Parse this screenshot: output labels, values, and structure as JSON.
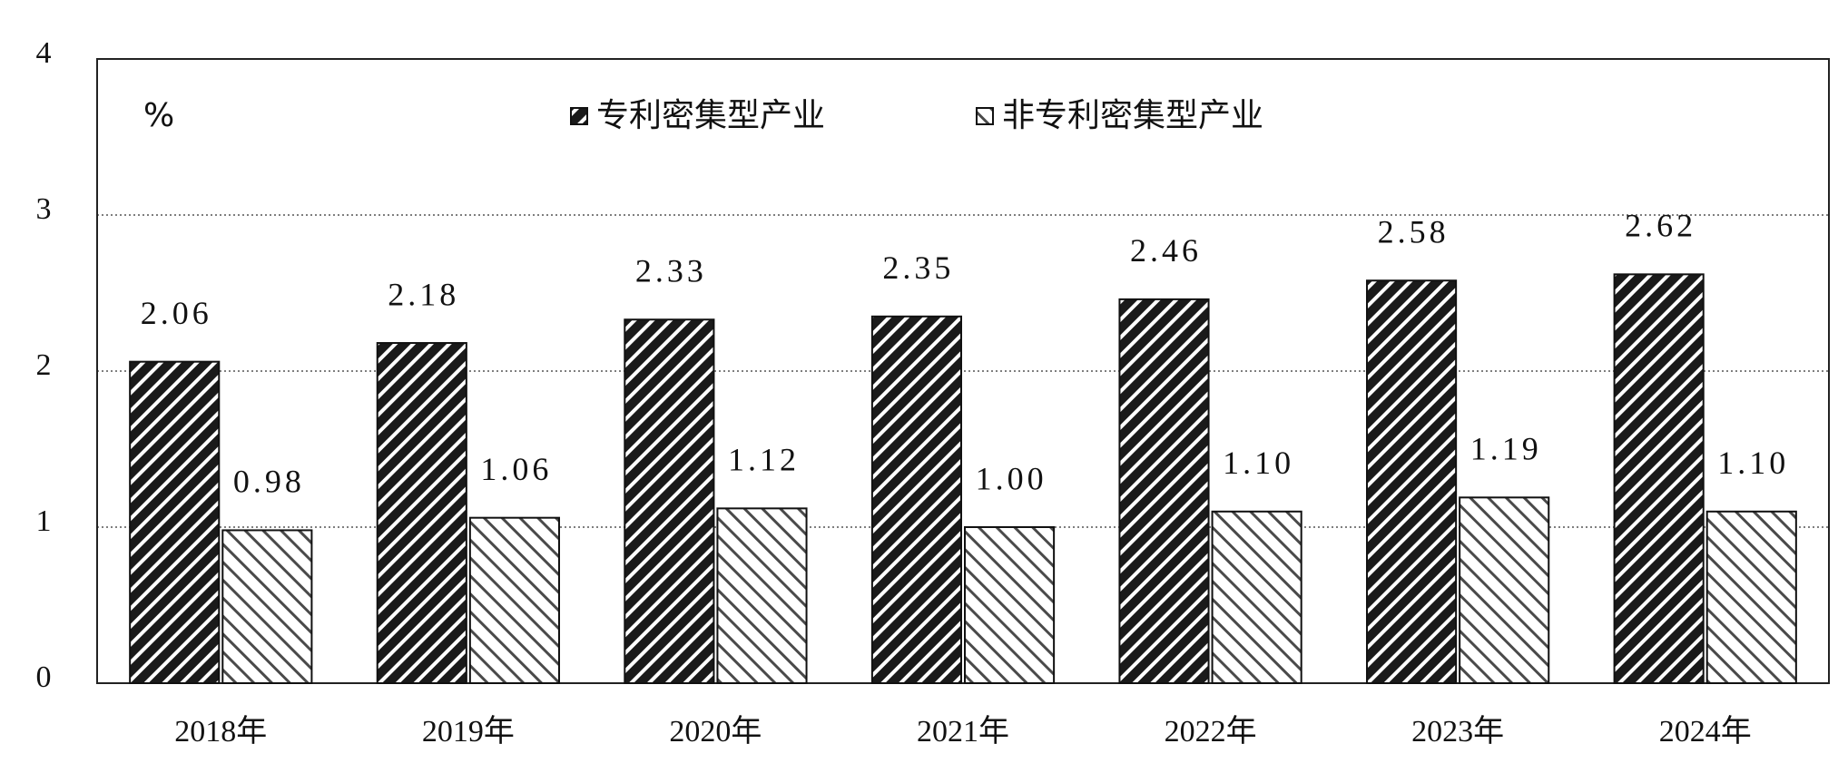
{
  "chart_data": {
    "type": "bar",
    "ylabel": "%",
    "categories": [
      "2018年",
      "2019年",
      "2020年",
      "2021年",
      "2022年",
      "2023年",
      "2024年"
    ],
    "series": [
      {
        "name": "专利密集型产业",
        "color": "#1a1a1a",
        "values": [
          2.06,
          2.18,
          2.33,
          2.35,
          2.46,
          2.58,
          2.62
        ],
        "value_labels": [
          "2.06",
          "2.18",
          "2.33",
          "2.35",
          "2.46",
          "2.58",
          "2.62"
        ]
      },
      {
        "name": "非专利密集型产业",
        "color": "#4a4a4a",
        "values": [
          0.98,
          1.06,
          1.12,
          1.0,
          1.1,
          1.19,
          1.1
        ],
        "value_labels": [
          "0.98",
          "1.06",
          "1.12",
          "1.00",
          "1.10",
          "1.19",
          "1.10"
        ]
      }
    ],
    "ylim": [
      0,
      4
    ],
    "yticks": [
      0,
      1,
      2,
      3,
      4
    ],
    "grid": true
  }
}
